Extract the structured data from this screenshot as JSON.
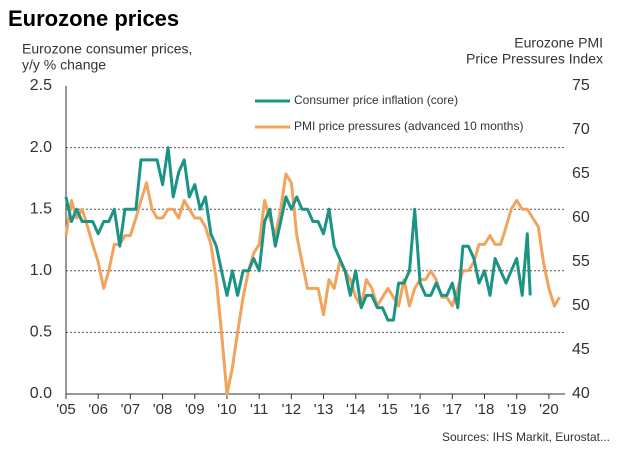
{
  "chart_data": {
    "type": "line",
    "title": "Eurozone prices",
    "y_axis_label": [
      "Eurozone consumer prices,",
      "y/y % change"
    ],
    "y2_axis_label": [
      "Eurozone PMI",
      "Price Pressures Index"
    ],
    "source": "Sources: IHS Markit, Eurostat...",
    "xlim": [
      2005,
      2020.5
    ],
    "xticks": [
      {
        "value": 2005,
        "label": "'05"
      },
      {
        "value": 2006,
        "label": "'06"
      },
      {
        "value": 2007,
        "label": "'07"
      },
      {
        "value": 2008,
        "label": "'08"
      },
      {
        "value": 2009,
        "label": "'09"
      },
      {
        "value": 2010,
        "label": "'10"
      },
      {
        "value": 2011,
        "label": "'11"
      },
      {
        "value": 2012,
        "label": "'12"
      },
      {
        "value": 2013,
        "label": "'13"
      },
      {
        "value": 2014,
        "label": "'14"
      },
      {
        "value": 2015,
        "label": "'15"
      },
      {
        "value": 2016,
        "label": "'16"
      },
      {
        "value": 2017,
        "label": "'17"
      },
      {
        "value": 2018,
        "label": "'18"
      },
      {
        "value": 2019,
        "label": "'19"
      },
      {
        "value": 2020,
        "label": "'20"
      }
    ],
    "ylim": [
      0,
      2.5
    ],
    "yticks": [
      {
        "value": 0,
        "label": "0.0"
      },
      0.5,
      {
        "value": 1,
        "label": "1.0"
      },
      1.5,
      {
        "value": 2,
        "label": "2.0"
      },
      2.5
    ],
    "y2lim": [
      40,
      75
    ],
    "y2ticks": [
      40,
      45,
      50,
      55,
      60,
      65,
      70,
      75
    ],
    "grid": true,
    "series": [
      {
        "name": "Consumer price inflation (core)",
        "color": "#1b9486",
        "axis": "y",
        "x": [
          2005.0,
          2005.17,
          2005.33,
          2005.5,
          2005.67,
          2005.83,
          2006.0,
          2006.17,
          2006.33,
          2006.5,
          2006.67,
          2006.83,
          2007.0,
          2007.17,
          2007.33,
          2007.5,
          2007.67,
          2007.83,
          2008.0,
          2008.17,
          2008.33,
          2008.5,
          2008.67,
          2008.83,
          2009.0,
          2009.17,
          2009.33,
          2009.5,
          2009.67,
          2009.83,
          2010.0,
          2010.17,
          2010.33,
          2010.5,
          2010.67,
          2010.83,
          2011.0,
          2011.17,
          2011.33,
          2011.5,
          2011.67,
          2011.83,
          2012.0,
          2012.17,
          2012.33,
          2012.5,
          2012.67,
          2012.83,
          2013.0,
          2013.17,
          2013.33,
          2013.5,
          2013.67,
          2013.83,
          2014.0,
          2014.17,
          2014.33,
          2014.5,
          2014.67,
          2014.83,
          2015.0,
          2015.17,
          2015.33,
          2015.5,
          2015.67,
          2015.83,
          2016.0,
          2016.17,
          2016.33,
          2016.5,
          2016.67,
          2016.83,
          2017.0,
          2017.17,
          2017.33,
          2017.5,
          2017.67,
          2017.83,
          2018.0,
          2018.17,
          2018.33,
          2018.5,
          2018.67,
          2018.83,
          2019.0,
          2019.17,
          2019.33,
          2019.42
        ],
        "values": [
          1.6,
          1.4,
          1.5,
          1.4,
          1.4,
          1.4,
          1.3,
          1.4,
          1.4,
          1.5,
          1.2,
          1.5,
          1.5,
          1.5,
          1.9,
          1.9,
          1.9,
          1.9,
          1.7,
          2.0,
          1.6,
          1.8,
          1.9,
          1.6,
          1.7,
          1.5,
          1.6,
          1.3,
          1.2,
          1.0,
          0.8,
          1.0,
          0.8,
          1.0,
          1.0,
          1.1,
          1.0,
          1.4,
          1.5,
          1.2,
          1.4,
          1.6,
          1.5,
          1.6,
          1.5,
          1.5,
          1.4,
          1.4,
          1.3,
          1.5,
          1.2,
          1.1,
          1.0,
          0.8,
          1.0,
          0.7,
          0.8,
          0.8,
          0.7,
          0.7,
          0.6,
          0.6,
          0.9,
          0.9,
          1.0,
          1.5,
          0.9,
          0.8,
          0.8,
          0.9,
          0.8,
          0.8,
          0.9,
          0.7,
          1.2,
          1.2,
          1.1,
          0.9,
          1.0,
          0.8,
          1.1,
          1.0,
          0.9,
          1.0,
          1.1,
          0.8,
          1.3,
          0.8
        ]
      },
      {
        "name": "PMI price pressures (advanced 10 months)",
        "color": "#f2a35e",
        "axis": "y2",
        "x": [
          2005.0,
          2005.17,
          2005.33,
          2005.5,
          2005.67,
          2005.83,
          2006.0,
          2006.17,
          2006.33,
          2006.5,
          2006.67,
          2006.83,
          2007.0,
          2007.17,
          2007.33,
          2007.5,
          2007.67,
          2007.83,
          2008.0,
          2008.17,
          2008.33,
          2008.5,
          2008.67,
          2008.83,
          2009.0,
          2009.17,
          2009.33,
          2009.5,
          2009.67,
          2009.83,
          2010.0,
          2010.17,
          2010.33,
          2010.5,
          2010.67,
          2010.83,
          2011.0,
          2011.17,
          2011.33,
          2011.5,
          2011.67,
          2011.83,
          2012.0,
          2012.17,
          2012.33,
          2012.5,
          2012.67,
          2012.83,
          2013.0,
          2013.17,
          2013.33,
          2013.5,
          2013.67,
          2013.83,
          2014.0,
          2014.17,
          2014.33,
          2014.5,
          2014.67,
          2014.83,
          2015.0,
          2015.17,
          2015.33,
          2015.5,
          2015.67,
          2015.83,
          2016.0,
          2016.17,
          2016.33,
          2016.5,
          2016.67,
          2016.83,
          2017.0,
          2017.17,
          2017.33,
          2017.5,
          2017.67,
          2017.83,
          2018.0,
          2018.17,
          2018.33,
          2018.5,
          2018.67,
          2018.83,
          2019.0,
          2019.17,
          2019.33,
          2019.5,
          2019.67,
          2019.83,
          2020.0,
          2020.17,
          2020.33
        ],
        "values": [
          58,
          62,
          60,
          61,
          59,
          57,
          55,
          52,
          54,
          57,
          57,
          58,
          58,
          60,
          62,
          64,
          61,
          60,
          60,
          61,
          61,
          60,
          62,
          61,
          60,
          60,
          59,
          57,
          53,
          47,
          40,
          43,
          47,
          51,
          54,
          56,
          57,
          62,
          60,
          58,
          61,
          65,
          64,
          58,
          55,
          52,
          52,
          52,
          49,
          53,
          52,
          55,
          54,
          53,
          51,
          50,
          53,
          52,
          50,
          51,
          52,
          51,
          50,
          53,
          50,
          52,
          53,
          53,
          54,
          53,
          51,
          51,
          50,
          52,
          54,
          54,
          55,
          57,
          57,
          58,
          57,
          57,
          59,
          61,
          62,
          61,
          61,
          60,
          59,
          55,
          52,
          50,
          51
        ]
      }
    ]
  }
}
